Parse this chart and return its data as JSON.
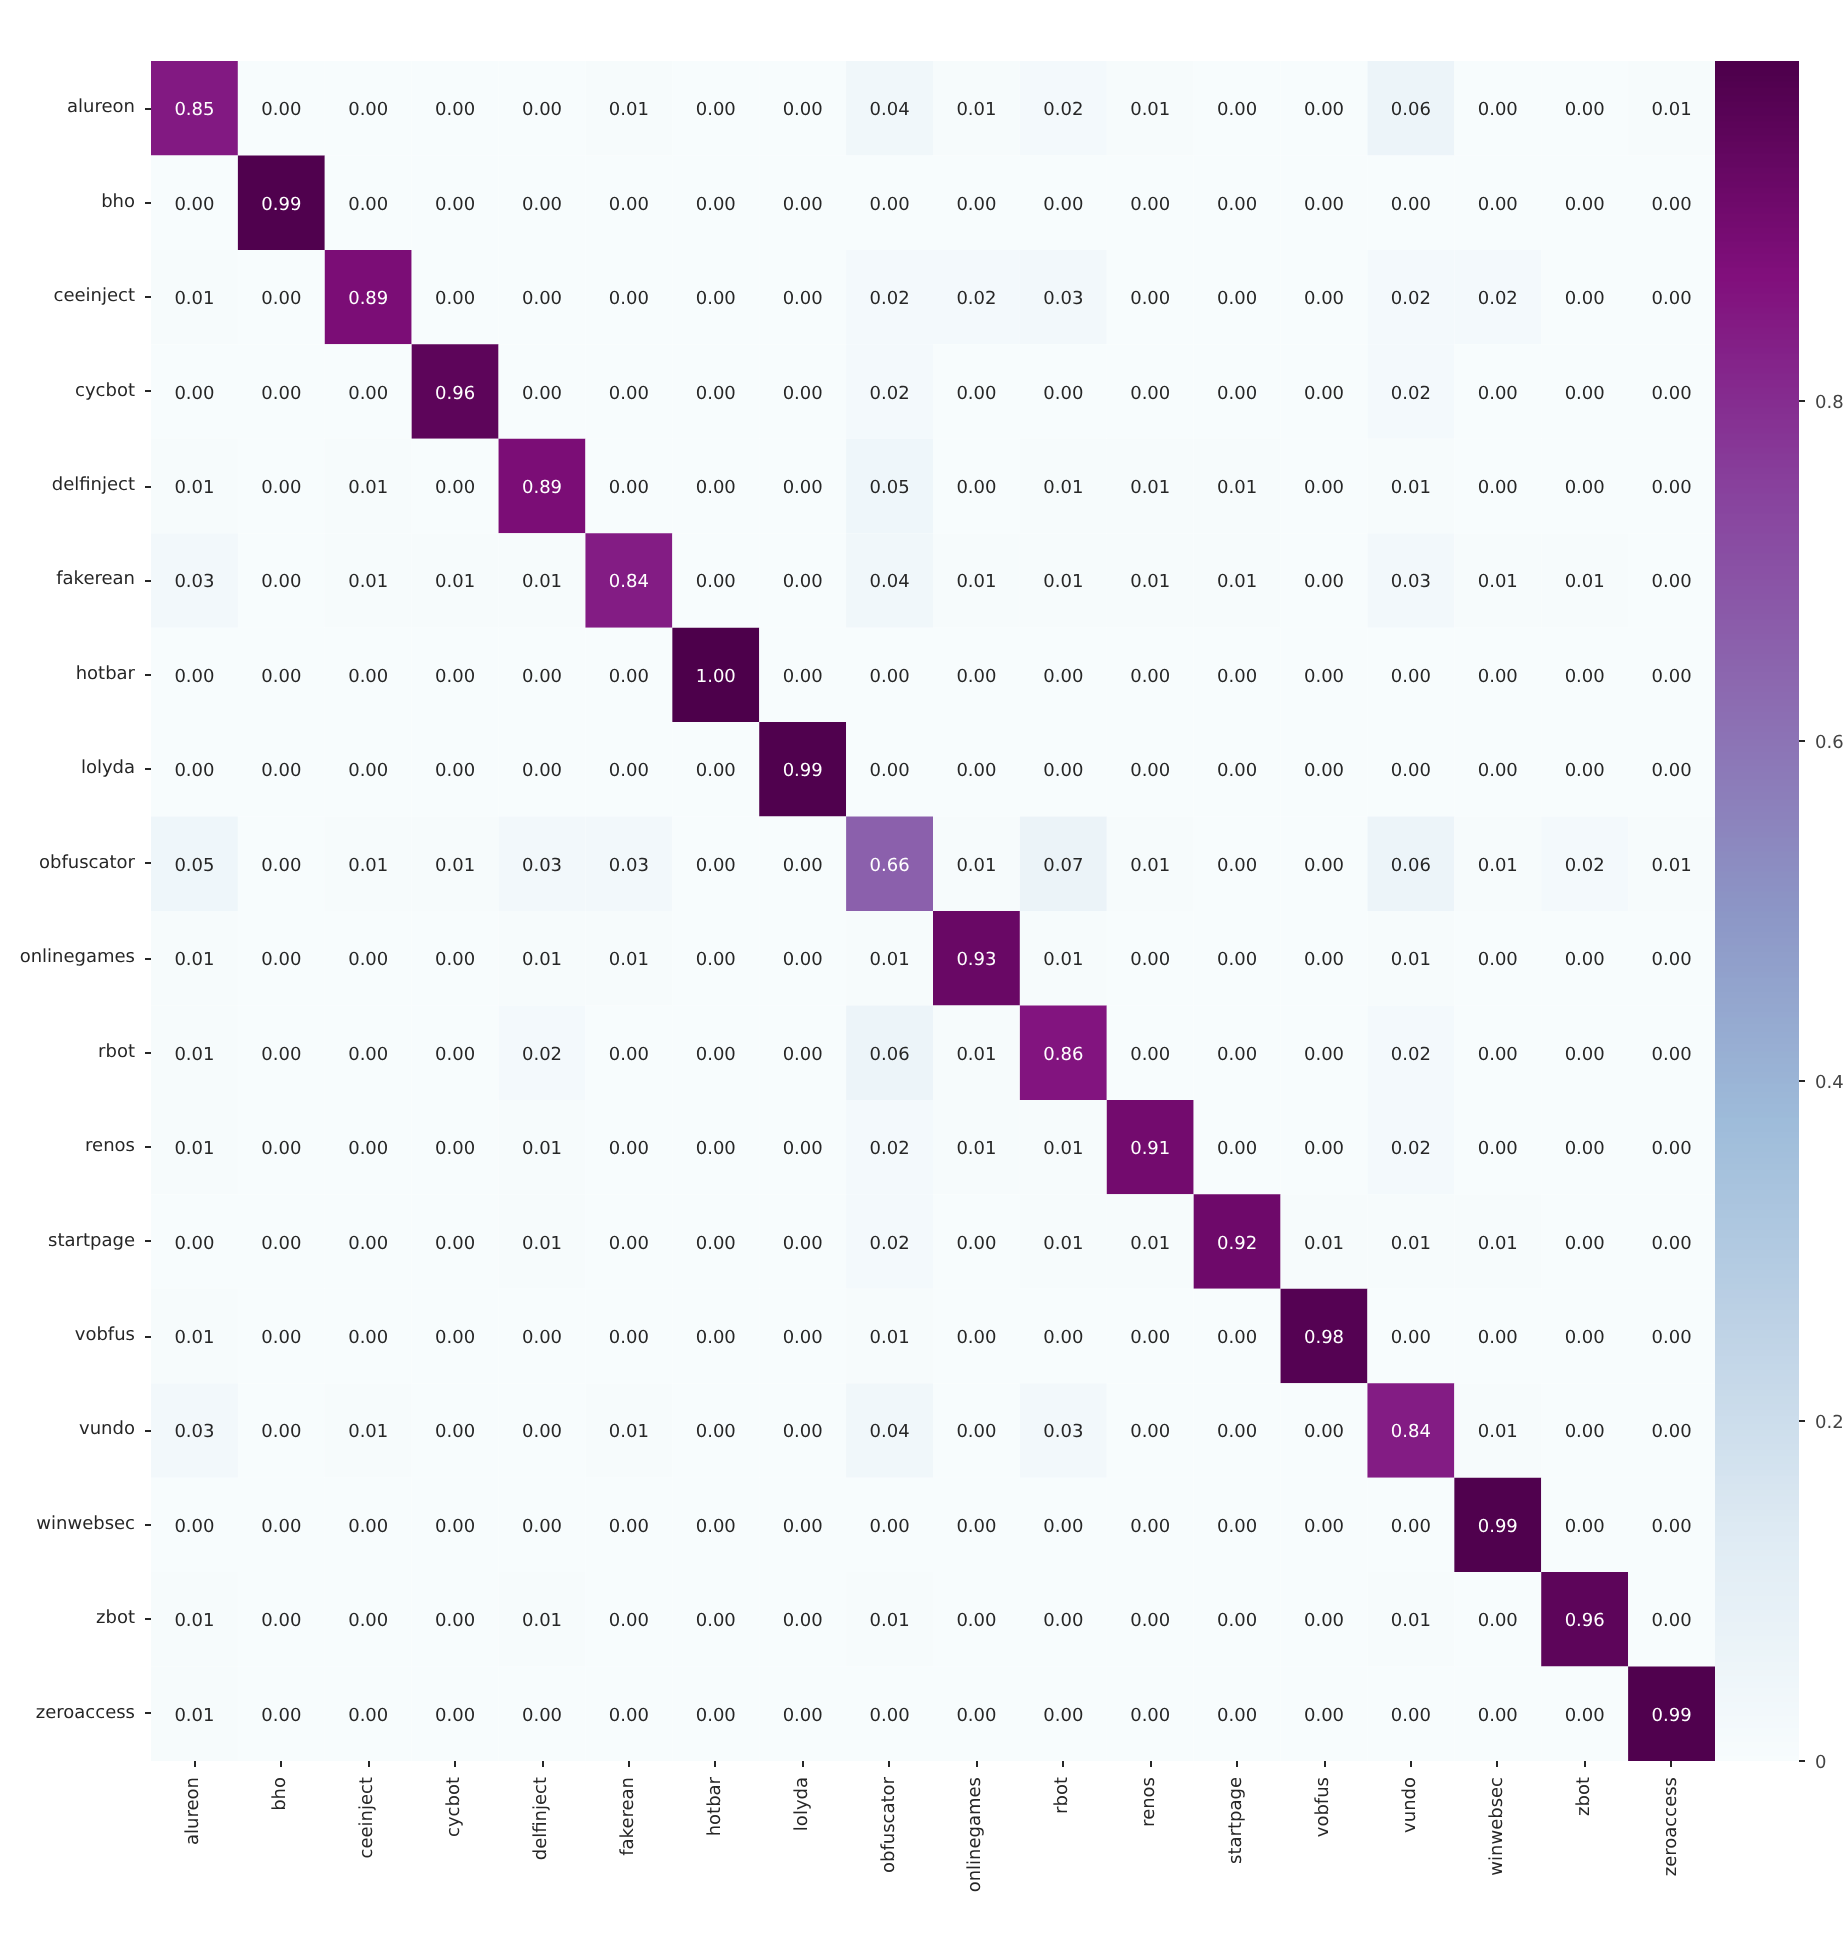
{
  "chart_data": {
    "type": "heatmap",
    "categories": [
      "alureon",
      "bho",
      "ceeinject",
      "cycbot",
      "delfinject",
      "fakerean",
      "hotbar",
      "lolyda",
      "obfuscator",
      "onlinegames",
      "rbot",
      "renos",
      "startpage",
      "vobfus",
      "vundo",
      "winwebsec",
      "zbot",
      "zeroaccess"
    ],
    "y_categories": [
      "alureon",
      "bho",
      "ceeinject",
      "cycbot",
      "delfinject",
      "fakerean",
      "hotbar",
      "lolyda",
      "obfuscator",
      "onlinegames",
      "rbot",
      "renos",
      "startpage",
      "vobfus",
      "vundo",
      "winwebsec",
      "zbot",
      "zeroaccess"
    ],
    "cells": [
      [
        0.85,
        0,
        0,
        0,
        0,
        0.01,
        0,
        0,
        0.04,
        0.01,
        0.02,
        0.01,
        0,
        0,
        0.06,
        0,
        0,
        0.01
      ],
      [
        0,
        0.99,
        0,
        0,
        0,
        0,
        0,
        0,
        0,
        0,
        0,
        0,
        0,
        0,
        0,
        0,
        0,
        0
      ],
      [
        0.01,
        0,
        0.89,
        0,
        0,
        0,
        0,
        0,
        0.02,
        0.02,
        0.03,
        0,
        0,
        0,
        0.02,
        0.02,
        0,
        0
      ],
      [
        0,
        0,
        0,
        0.96,
        0,
        0,
        0,
        0,
        0.02,
        0,
        0,
        0,
        0,
        0,
        0.02,
        0,
        0,
        0
      ],
      [
        0.01,
        0,
        0.01,
        0,
        0.89,
        0,
        0,
        0,
        0.05,
        0,
        0.01,
        0.01,
        0.01,
        0,
        0.01,
        0,
        0,
        0
      ],
      [
        0.03,
        0,
        0.01,
        0.01,
        0.01,
        0.84,
        0,
        0,
        0.04,
        0.01,
        0.01,
        0.01,
        0.01,
        0,
        0.03,
        0.01,
        0.01,
        0
      ],
      [
        0,
        0,
        0,
        0,
        0,
        0,
        1.0,
        0,
        0,
        0,
        0,
        0,
        0,
        0,
        0,
        0,
        0,
        0
      ],
      [
        0,
        0,
        0,
        0,
        0,
        0,
        0,
        0.99,
        0,
        0,
        0,
        0,
        0,
        0,
        0,
        0,
        0,
        0
      ],
      [
        0.05,
        0,
        0.01,
        0.01,
        0.03,
        0.03,
        0,
        0,
        0.66,
        0.01,
        0.07,
        0.01,
        0,
        0,
        0.06,
        0.01,
        0.02,
        0.01
      ],
      [
        0.01,
        0,
        0,
        0,
        0.01,
        0.01,
        0,
        0,
        0.01,
        0.93,
        0.01,
        0,
        0,
        0,
        0.01,
        0,
        0,
        0
      ],
      [
        0.01,
        0,
        0,
        0,
        0.02,
        0,
        0,
        0,
        0.06,
        0.01,
        0.86,
        0,
        0,
        0,
        0.02,
        0,
        0,
        0
      ],
      [
        0.01,
        0,
        0,
        0,
        0.01,
        0,
        0,
        0,
        0.02,
        0.01,
        0.01,
        0.91,
        0,
        0,
        0.02,
        0,
        0,
        0
      ],
      [
        0,
        0,
        0,
        0,
        0.01,
        0,
        0,
        0,
        0.02,
        0,
        0.01,
        0.01,
        0.92,
        0.01,
        0.01,
        0.01,
        0,
        0
      ],
      [
        0.01,
        0,
        0,
        0,
        0,
        0,
        0,
        0,
        0.01,
        0,
        0,
        0,
        0,
        0.98,
        0,
        0,
        0,
        0
      ],
      [
        0.03,
        0,
        0.01,
        0,
        0,
        0.01,
        0,
        0,
        0.04,
        0,
        0.03,
        0,
        0,
        0,
        0.84,
        0.01,
        0,
        0
      ],
      [
        0,
        0,
        0,
        0,
        0,
        0,
        0,
        0,
        0,
        0,
        0,
        0,
        0,
        0,
        0,
        0.99,
        0,
        0
      ],
      [
        0.01,
        0,
        0,
        0,
        0.01,
        0,
        0,
        0,
        0.01,
        0,
        0,
        0,
        0,
        0,
        0.01,
        0,
        0.96,
        0
      ],
      [
        0.01,
        0,
        0,
        0,
        0,
        0,
        0,
        0,
        0,
        0,
        0,
        0,
        0,
        0,
        0,
        0,
        0,
        0.99
      ]
    ],
    "cell_labels": [
      [
        "0.85",
        "0.00",
        "0.00",
        "0.00",
        "0.00",
        "0.01",
        "0.00",
        "0.00",
        "0.04",
        "0.01",
        "0.02",
        "0.01",
        "0.00",
        "0.00",
        "0.06",
        "0.00",
        "0.00",
        "0.01"
      ],
      [
        "0.00",
        "0.99",
        "0.00",
        "0.00",
        "0.00",
        "0.00",
        "0.00",
        "0.00",
        "0.00",
        "0.00",
        "0.00",
        "0.00",
        "0.00",
        "0.00",
        "0.00",
        "0.00",
        "0.00",
        "0.00"
      ],
      [
        "0.01",
        "0.00",
        "0.89",
        "0.00",
        "0.00",
        "0.00",
        "0.00",
        "0.00",
        "0.02",
        "0.02",
        "0.03",
        "0.00",
        "0.00",
        "0.00",
        "0.02",
        "0.02",
        "0.00",
        "0.00"
      ],
      [
        "0.00",
        "0.00",
        "0.00",
        "0.96",
        "0.00",
        "0.00",
        "0.00",
        "0.00",
        "0.02",
        "0.00",
        "0.00",
        "0.00",
        "0.00",
        "0.00",
        "0.02",
        "0.00",
        "0.00",
        "0.00"
      ],
      [
        "0.01",
        "0.00",
        "0.01",
        "0.00",
        "0.89",
        "0.00",
        "0.00",
        "0.00",
        "0.05",
        "0.00",
        "0.01",
        "0.01",
        "0.01",
        "0.00",
        "0.01",
        "0.00",
        "0.00",
        "0.00"
      ],
      [
        "0.03",
        "0.00",
        "0.01",
        "0.01",
        "0.01",
        "0.84",
        "0.00",
        "0.00",
        "0.04",
        "0.01",
        "0.01",
        "0.01",
        "0.01",
        "0.00",
        "0.03",
        "0.01",
        "0.01",
        "0.00"
      ],
      [
        "0.00",
        "0.00",
        "0.00",
        "0.00",
        "0.00",
        "0.00",
        "1.00",
        "0.00",
        "0.00",
        "0.00",
        "0.00",
        "0.00",
        "0.00",
        "0.00",
        "0.00",
        "0.00",
        "0.00",
        "0.00"
      ],
      [
        "0.00",
        "0.00",
        "0.00",
        "0.00",
        "0.00",
        "0.00",
        "0.00",
        "0.99",
        "0.00",
        "0.00",
        "0.00",
        "0.00",
        "0.00",
        "0.00",
        "0.00",
        "0.00",
        "0.00",
        "0.00"
      ],
      [
        "0.05",
        "0.00",
        "0.01",
        "0.01",
        "0.03",
        "0.03",
        "0.00",
        "0.00",
        "0.66",
        "0.01",
        "0.07",
        "0.01",
        "0.00",
        "0.00",
        "0.06",
        "0.01",
        "0.02",
        "0.01"
      ],
      [
        "0.01",
        "0.00",
        "0.00",
        "0.00",
        "0.01",
        "0.01",
        "0.00",
        "0.00",
        "0.01",
        "0.93",
        "0.01",
        "0.00",
        "0.00",
        "0.00",
        "0.01",
        "0.00",
        "0.00",
        "0.00"
      ],
      [
        "0.01",
        "0.00",
        "0.00",
        "0.00",
        "0.02",
        "0.00",
        "0.00",
        "0.00",
        "0.06",
        "0.01",
        "0.86",
        "0.00",
        "0.00",
        "0.00",
        "0.02",
        "0.00",
        "0.00",
        "0.00"
      ],
      [
        "0.01",
        "0.00",
        "0.00",
        "0.00",
        "0.01",
        "0.00",
        "0.00",
        "0.00",
        "0.02",
        "0.01",
        "0.01",
        "0.91",
        "0.00",
        "0.00",
        "0.02",
        "0.00",
        "0.00",
        "0.00"
      ],
      [
        "0.00",
        "0.00",
        "0.00",
        "0.00",
        "0.01",
        "0.00",
        "0.00",
        "0.00",
        "0.02",
        "0.00",
        "0.01",
        "0.01",
        "0.92",
        "0.01",
        "0.01",
        "0.01",
        "0.00",
        "0.00"
      ],
      [
        "0.01",
        "0.00",
        "0.00",
        "0.00",
        "0.00",
        "0.00",
        "0.00",
        "0.00",
        "0.01",
        "0.00",
        "0.00",
        "0.00",
        "0.00",
        "0.98",
        "0.00",
        "0.00",
        "0.00",
        "0.00"
      ],
      [
        "0.03",
        "0.00",
        "0.01",
        "0.00",
        "0.00",
        "0.01",
        "0.00",
        "0.00",
        "0.04",
        "0.00",
        "0.03",
        "0.00",
        "0.00",
        "0.00",
        "0.84",
        "0.01",
        "0.00",
        "0.00"
      ],
      [
        "0.00",
        "0.00",
        "0.00",
        "0.00",
        "0.00",
        "0.00",
        "0.00",
        "0.00",
        "0.00",
        "0.00",
        "0.00",
        "0.00",
        "0.00",
        "0.00",
        "0.00",
        "0.99",
        "0.00",
        "0.00"
      ],
      [
        "0.01",
        "0.00",
        "0.00",
        "0.00",
        "0.01",
        "0.00",
        "0.00",
        "0.00",
        "0.01",
        "0.00",
        "0.00",
        "0.00",
        "0.00",
        "0.00",
        "0.01",
        "0.00",
        "0.96",
        "0.00"
      ],
      [
        "0.01",
        "0.00",
        "0.00",
        "0.00",
        "0.00",
        "0.00",
        "0.00",
        "0.00",
        "0.00",
        "0.00",
        "0.00",
        "0.00",
        "0.00",
        "0.00",
        "0.00",
        "0.00",
        "0.00",
        "0.99"
      ]
    ],
    "clim": [
      0,
      1
    ],
    "cticks": [
      0.0,
      0.2,
      0.4,
      0.6,
      0.8
    ],
    "data_labels": true
  }
}
